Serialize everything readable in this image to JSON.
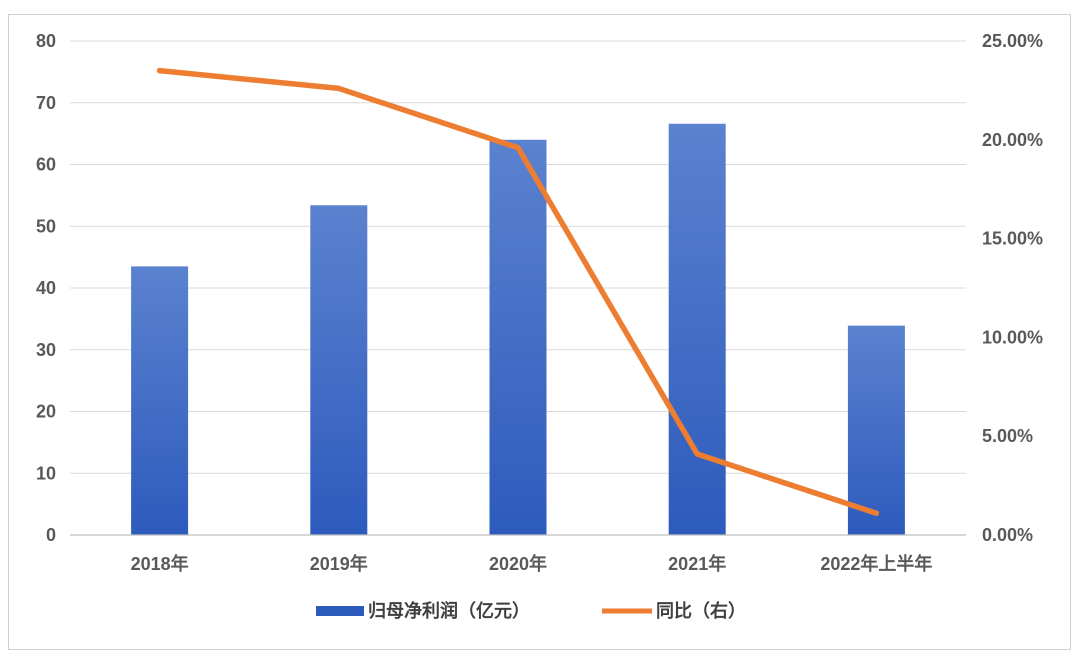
{
  "chart_data": {
    "type": "bar",
    "categories": [
      "2018年",
      "2019年",
      "2020年",
      "2021年",
      "2022年上半年"
    ],
    "series": [
      {
        "name": "归母净利润（亿元）",
        "type": "bar",
        "axis": "left",
        "values": [
          43.5,
          53.4,
          64.0,
          66.6,
          33.9
        ]
      },
      {
        "name": "同比（右）",
        "type": "line",
        "axis": "right",
        "values": [
          23.5,
          22.6,
          19.6,
          4.1,
          1.1
        ]
      }
    ],
    "y_left": {
      "min": 0,
      "max": 80,
      "step": 10,
      "tick_labels": [
        "0",
        "10",
        "20",
        "30",
        "40",
        "50",
        "60",
        "70",
        "80"
      ]
    },
    "y_right": {
      "min": 0,
      "max": 25,
      "step": 5,
      "tick_labels": [
        "0.00%",
        "5.00%",
        "10.00%",
        "15.00%",
        "20.00%",
        "25.00%"
      ]
    },
    "grid": true,
    "legend_position": "bottom",
    "colors": {
      "bar_top": "#5b82cf",
      "bar_bottom": "#2d5bbd",
      "line": "#ed7d31",
      "grid": "#d9d9d9"
    }
  }
}
